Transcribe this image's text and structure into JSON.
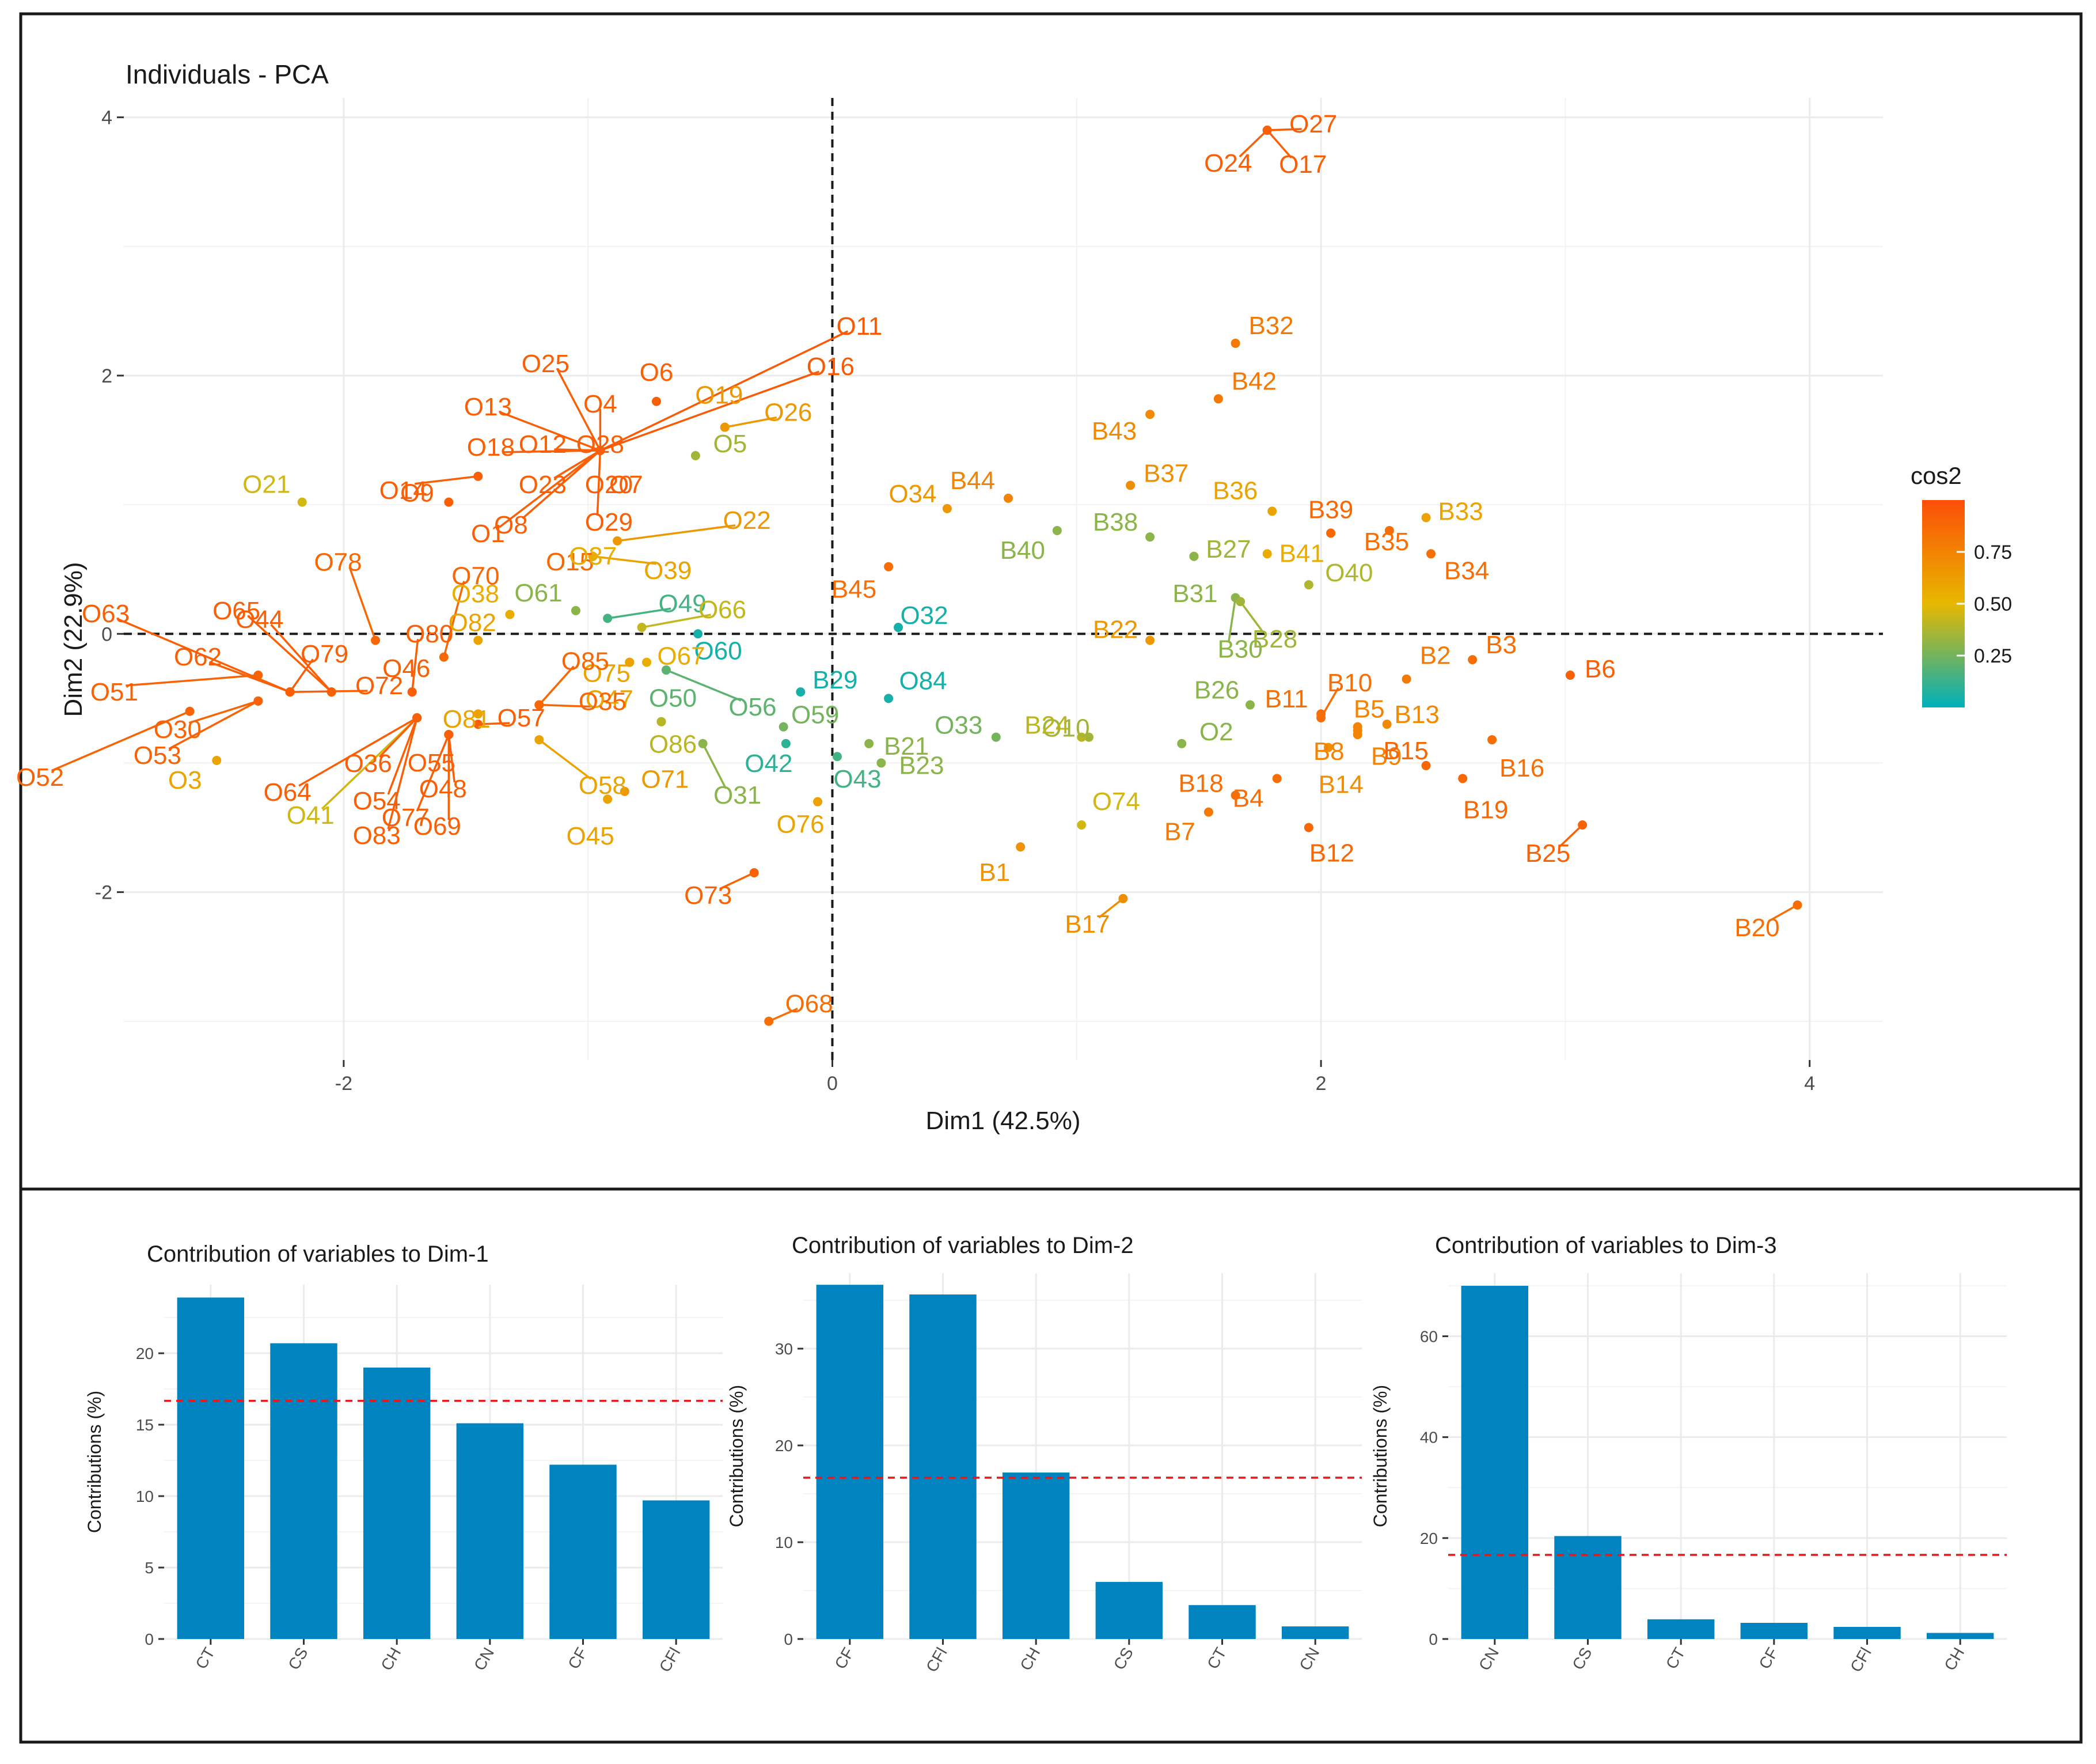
{
  "chart_data": [
    {
      "type": "scatter",
      "title": "Individuals - PCA",
      "xlabel": "Dim1 (42.5%)",
      "ylabel": "Dim2 (22.9%)",
      "xlim": [
        -2.9,
        4.3
      ],
      "ylim": [
        -3.3,
        4.15
      ],
      "x_ticks": [
        -2,
        0,
        2,
        4
      ],
      "y_ticks": [
        -2,
        0,
        2,
        4
      ],
      "grid": true,
      "reference_lines": {
        "x": 0,
        "y": 0,
        "style": "dashed"
      },
      "legend": {
        "title": "cos2",
        "position": "right",
        "ticks": [
          "0.25",
          "0.50",
          "0.75"
        ],
        "range": [
          0.0,
          1.0
        ]
      },
      "color_scale": [
        "#00AFBB",
        "#E7B800",
        "#FC4E07"
      ],
      "points": [
        {
          "label": "O27",
          "x": 1.78,
          "y": 3.9,
          "cos2": 0.92
        },
        {
          "label": "O24",
          "x": 1.78,
          "y": 3.9,
          "cos2": 0.92
        },
        {
          "label": "O17",
          "x": 1.78,
          "y": 3.9,
          "cos2": 0.92
        },
        {
          "label": "B32",
          "x": 1.65,
          "y": 2.25,
          "cos2": 0.8
        },
        {
          "label": "B42",
          "x": 1.58,
          "y": 1.82,
          "cos2": 0.8
        },
        {
          "label": "B43",
          "x": 1.3,
          "y": 1.7,
          "cos2": 0.72
        },
        {
          "label": "B37",
          "x": 1.22,
          "y": 1.15,
          "cos2": 0.7
        },
        {
          "label": "B44",
          "x": 0.72,
          "y": 1.05,
          "cos2": 0.75
        },
        {
          "label": "B36",
          "x": 1.8,
          "y": 0.95,
          "cos2": 0.6
        },
        {
          "label": "B39",
          "x": 2.04,
          "y": 0.78,
          "cos2": 0.88
        },
        {
          "label": "B35",
          "x": 2.28,
          "y": 0.8,
          "cos2": 0.85
        },
        {
          "label": "B33",
          "x": 2.43,
          "y": 0.9,
          "cos2": 0.6
        },
        {
          "label": "B34",
          "x": 2.45,
          "y": 0.62,
          "cos2": 0.85
        },
        {
          "label": "B38",
          "x": 1.3,
          "y": 0.75,
          "cos2": 0.3
        },
        {
          "label": "B40",
          "x": 0.92,
          "y": 0.8,
          "cos2": 0.3
        },
        {
          "label": "B27",
          "x": 1.48,
          "y": 0.6,
          "cos2": 0.35
        },
        {
          "label": "B41",
          "x": 1.78,
          "y": 0.62,
          "cos2": 0.55
        },
        {
          "label": "B31",
          "x": 1.48,
          "y": 0.6,
          "cos2": 0.3
        },
        {
          "label": "B30",
          "x": 1.65,
          "y": 0.28,
          "cos2": 0.3
        },
        {
          "label": "B28",
          "x": 1.67,
          "y": 0.25,
          "cos2": 0.35
        },
        {
          "label": "O40",
          "x": 1.95,
          "y": 0.38,
          "cos2": 0.38
        },
        {
          "label": "O34",
          "x": 0.47,
          "y": 0.97,
          "cos2": 0.65
        },
        {
          "label": "B45",
          "x": 0.23,
          "y": 0.52,
          "cos2": 0.85
        },
        {
          "label": "O32",
          "x": 0.27,
          "y": 0.05,
          "cos2": 0.05
        },
        {
          "label": "O84",
          "x": 0.23,
          "y": -0.5,
          "cos2": 0.05
        },
        {
          "label": "B29",
          "x": -0.13,
          "y": -0.45,
          "cos2": 0.05
        },
        {
          "label": "B22",
          "x": 1.3,
          "y": -0.05,
          "cos2": 0.65
        },
        {
          "label": "B26",
          "x": 1.71,
          "y": -0.55,
          "cos2": 0.3
        },
        {
          "label": "B11",
          "x": 2.0,
          "y": -0.62,
          "cos2": 0.85
        },
        {
          "label": "B10",
          "x": 2.0,
          "y": -0.65,
          "cos2": 0.85
        },
        {
          "label": "B2",
          "x": 2.35,
          "y": -0.35,
          "cos2": 0.8
        },
        {
          "label": "B3",
          "x": 2.62,
          "y": -0.2,
          "cos2": 0.85
        },
        {
          "label": "B6",
          "x": 3.02,
          "y": -0.32,
          "cos2": 0.92
        },
        {
          "label": "B13",
          "x": 2.27,
          "y": -0.7,
          "cos2": 0.72
        },
        {
          "label": "B5",
          "x": 2.15,
          "y": -0.72,
          "cos2": 0.75
        },
        {
          "label": "B8",
          "x": 2.15,
          "y": -0.78,
          "cos2": 0.75
        },
        {
          "label": "B9",
          "x": 2.15,
          "y": -0.75,
          "cos2": 0.75
        },
        {
          "label": "B16",
          "x": 2.7,
          "y": -0.82,
          "cos2": 0.85
        },
        {
          "label": "B15",
          "x": 2.43,
          "y": -1.02,
          "cos2": 0.88
        },
        {
          "label": "B19",
          "x": 2.58,
          "y": -1.12,
          "cos2": 0.88
        },
        {
          "label": "B25",
          "x": 3.07,
          "y": -1.48,
          "cos2": 0.9
        },
        {
          "label": "B14",
          "x": 2.03,
          "y": -0.88,
          "cos2": 0.7
        },
        {
          "label": "B4",
          "x": 1.82,
          "y": -1.12,
          "cos2": 0.85
        },
        {
          "label": "B18",
          "x": 1.65,
          "y": -1.25,
          "cos2": 0.85
        },
        {
          "label": "B7",
          "x": 1.54,
          "y": -1.38,
          "cos2": 0.8
        },
        {
          "label": "B12",
          "x": 1.95,
          "y": -1.5,
          "cos2": 0.88
        },
        {
          "label": "O2",
          "x": 1.43,
          "y": -0.85,
          "cos2": 0.3
        },
        {
          "label": "O10",
          "x": 1.05,
          "y": -0.8,
          "cos2": 0.35
        },
        {
          "label": "B24",
          "x": 1.02,
          "y": -0.8,
          "cos2": 0.4
        },
        {
          "label": "O33",
          "x": 0.67,
          "y": -0.8,
          "cos2": 0.25
        },
        {
          "label": "O74",
          "x": 1.02,
          "y": -1.48,
          "cos2": 0.45
        },
        {
          "label": "B1",
          "x": 0.77,
          "y": -1.65,
          "cos2": 0.68
        },
        {
          "label": "B17",
          "x": 1.19,
          "y": -2.05,
          "cos2": 0.7
        },
        {
          "label": "B20",
          "x": 3.95,
          "y": -2.1,
          "cos2": 0.85
        },
        {
          "label": "O11",
          "x": -0.95,
          "y": 1.42,
          "cos2": 0.95
        },
        {
          "label": "O16",
          "x": -0.95,
          "y": 1.42,
          "cos2": 0.95
        },
        {
          "label": "O6",
          "x": -0.72,
          "y": 1.8,
          "cos2": 0.92
        },
        {
          "label": "O19",
          "x": -0.44,
          "y": 1.6,
          "cos2": 0.65
        },
        {
          "label": "O26",
          "x": -0.44,
          "y": 1.6,
          "cos2": 0.65
        },
        {
          "label": "O5",
          "x": -0.56,
          "y": 1.38,
          "cos2": 0.35
        },
        {
          "label": "O25",
          "x": -0.95,
          "y": 1.42,
          "cos2": 0.92
        },
        {
          "label": "O4",
          "x": -0.95,
          "y": 1.42,
          "cos2": 0.92
        },
        {
          "label": "O13",
          "x": -0.95,
          "y": 1.42,
          "cos2": 0.92
        },
        {
          "label": "O28",
          "x": -0.95,
          "y": 1.42,
          "cos2": 0.92
        },
        {
          "label": "O12",
          "x": -0.95,
          "y": 1.42,
          "cos2": 0.92
        },
        {
          "label": "O18",
          "x": -0.95,
          "y": 1.42,
          "cos2": 0.92
        },
        {
          "label": "O14",
          "x": -1.45,
          "y": 1.22,
          "cos2": 0.92
        },
        {
          "label": "O23",
          "x": -0.95,
          "y": 1.42,
          "cos2": 0.92
        },
        {
          "label": "O20",
          "x": -0.95,
          "y": 1.42,
          "cos2": 0.92
        },
        {
          "label": "O7",
          "x": -0.95,
          "y": 1.42,
          "cos2": 0.92
        },
        {
          "label": "O9",
          "x": -1.57,
          "y": 1.02,
          "cos2": 0.92
        },
        {
          "label": "O1",
          "x": -0.95,
          "y": 1.42,
          "cos2": 0.92
        },
        {
          "label": "O8",
          "x": -0.95,
          "y": 1.42,
          "cos2": 0.92
        },
        {
          "label": "O29",
          "x": -0.95,
          "y": 1.42,
          "cos2": 0.92
        },
        {
          "label": "O21",
          "x": -2.17,
          "y": 1.02,
          "cos2": 0.45
        },
        {
          "label": "O22",
          "x": -0.88,
          "y": 0.72,
          "cos2": 0.65
        },
        {
          "label": "O15",
          "x": -0.98,
          "y": 0.6,
          "cos2": 0.88
        },
        {
          "label": "O39",
          "x": -0.98,
          "y": 0.6,
          "cos2": 0.6
        },
        {
          "label": "O37",
          "x": -0.98,
          "y": 0.6,
          "cos2": 0.55
        },
        {
          "label": "O38",
          "x": -1.32,
          "y": 0.15,
          "cos2": 0.55
        },
        {
          "label": "O61",
          "x": -1.05,
          "y": 0.18,
          "cos2": 0.3
        },
        {
          "label": "O49",
          "x": -0.92,
          "y": 0.12,
          "cos2": 0.15
        },
        {
          "label": "O66",
          "x": -0.78,
          "y": 0.05,
          "cos2": 0.42
        },
        {
          "label": "O60",
          "x": -0.55,
          "y": 0.0,
          "cos2": 0.05
        },
        {
          "label": "O82",
          "x": -1.45,
          "y": -0.05,
          "cos2": 0.6
        },
        {
          "label": "O75",
          "x": -0.83,
          "y": -0.22,
          "cos2": 0.6
        },
        {
          "label": "O67",
          "x": -0.76,
          "y": -0.22,
          "cos2": 0.55
        },
        {
          "label": "O47",
          "x": -0.83,
          "y": -0.22,
          "cos2": 0.6
        },
        {
          "label": "O56",
          "x": -0.68,
          "y": -0.28,
          "cos2": 0.2
        },
        {
          "label": "O50",
          "x": -0.7,
          "y": -0.68,
          "cos2": 0.2
        },
        {
          "label": "O86",
          "x": -0.7,
          "y": -0.68,
          "cos2": 0.4
        },
        {
          "label": "O59",
          "x": -0.2,
          "y": -0.72,
          "cos2": 0.25
        },
        {
          "label": "O42",
          "x": -0.19,
          "y": -0.85,
          "cos2": 0.1
        },
        {
          "label": "O43",
          "x": 0.02,
          "y": -0.95,
          "cos2": 0.15
        },
        {
          "label": "B21",
          "x": 0.15,
          "y": -0.85,
          "cos2": 0.3
        },
        {
          "label": "B23",
          "x": 0.2,
          "y": -1.0,
          "cos2": 0.3
        },
        {
          "label": "O31",
          "x": -0.53,
          "y": -0.85,
          "cos2": 0.3
        },
        {
          "label": "O76",
          "x": -0.06,
          "y": -1.3,
          "cos2": 0.6
        },
        {
          "label": "O71",
          "x": -0.85,
          "y": -1.22,
          "cos2": 0.65
        },
        {
          "label": "O45",
          "x": -0.92,
          "y": -1.28,
          "cos2": 0.6
        },
        {
          "label": "O73",
          "x": -0.32,
          "y": -1.85,
          "cos2": 0.9
        },
        {
          "label": "O68",
          "x": -0.26,
          "y": -3.0,
          "cos2": 0.85
        },
        {
          "label": "O78",
          "x": -1.87,
          "y": -0.05,
          "cos2": 0.88
        },
        {
          "label": "O70",
          "x": -1.59,
          "y": -0.18,
          "cos2": 0.88
        },
        {
          "label": "O80",
          "x": -1.72,
          "y": -0.45,
          "cos2": 0.92
        },
        {
          "label": "O46",
          "x": -1.72,
          "y": -0.45,
          "cos2": 0.92
        },
        {
          "label": "O44",
          "x": -2.05,
          "y": -0.45,
          "cos2": 0.92
        },
        {
          "label": "O65",
          "x": -2.05,
          "y": -0.45,
          "cos2": 0.92
        },
        {
          "label": "O63",
          "x": -2.22,
          "y": -0.45,
          "cos2": 0.92
        },
        {
          "label": "O62",
          "x": -2.22,
          "y": -0.45,
          "cos2": 0.92
        },
        {
          "label": "O79",
          "x": -2.22,
          "y": -0.45,
          "cos2": 0.92
        },
        {
          "label": "O72",
          "x": -2.22,
          "y": -0.45,
          "cos2": 0.92
        },
        {
          "label": "O51",
          "x": -2.35,
          "y": -0.32,
          "cos2": 0.9
        },
        {
          "label": "O30",
          "x": -2.35,
          "y": -0.52,
          "cos2": 0.9
        },
        {
          "label": "O52",
          "x": -2.63,
          "y": -0.6,
          "cos2": 0.9
        },
        {
          "label": "O53",
          "x": -2.35,
          "y": -0.52,
          "cos2": 0.9
        },
        {
          "label": "O3",
          "x": -2.52,
          "y": -0.98,
          "cos2": 0.6
        },
        {
          "label": "O64",
          "x": -1.7,
          "y": -0.65,
          "cos2": 0.92
        },
        {
          "label": "O41",
          "x": -1.7,
          "y": -0.65,
          "cos2": 0.45
        },
        {
          "label": "O36",
          "x": -1.7,
          "y": -0.65,
          "cos2": 0.92
        },
        {
          "label": "O54",
          "x": -1.7,
          "y": -0.65,
          "cos2": 0.92
        },
        {
          "label": "O83",
          "x": -1.7,
          "y": -0.65,
          "cos2": 0.92
        },
        {
          "label": "O81",
          "x": -1.45,
          "y": -0.62,
          "cos2": 0.6
        },
        {
          "label": "O57",
          "x": -1.45,
          "y": -0.7,
          "cos2": 0.92
        },
        {
          "label": "O85",
          "x": -1.2,
          "y": -0.55,
          "cos2": 0.88
        },
        {
          "label": "O35",
          "x": -1.2,
          "y": -0.55,
          "cos2": 0.88
        },
        {
          "label": "O55",
          "x": -1.57,
          "y": -0.78,
          "cos2": 0.92
        },
        {
          "label": "O48",
          "x": -1.57,
          "y": -0.78,
          "cos2": 0.92
        },
        {
          "label": "O58",
          "x": -1.2,
          "y": -0.82,
          "cos2": 0.6
        },
        {
          "label": "O77",
          "x": -1.57,
          "y": -0.78,
          "cos2": 0.92
        },
        {
          "label": "O69",
          "x": -1.57,
          "y": -0.78,
          "cos2": 0.92
        }
      ]
    },
    {
      "type": "bar",
      "title": "Contribution of variables to Dim-1",
      "xlabel": "",
      "ylabel": "Contributions (%)",
      "ylim": [
        0,
        24.8
      ],
      "y_ticks": [
        0,
        5,
        10,
        15,
        20
      ],
      "categories": [
        "CT",
        "CS",
        "CH",
        "CN",
        "CF",
        "CFl"
      ],
      "values": [
        23.9,
        20.7,
        19.0,
        15.1,
        12.2,
        9.7
      ],
      "reference_line": 16.67,
      "bar_color": "#0083BE",
      "grid": true
    },
    {
      "type": "bar",
      "title": "Contribution of variables to Dim-2",
      "xlabel": "",
      "ylabel": "Contributions (%)",
      "ylim": [
        0,
        37.8
      ],
      "y_ticks": [
        0,
        10,
        20,
        30
      ],
      "categories": [
        "CF",
        "CFl",
        "CH",
        "CS",
        "CT",
        "CN"
      ],
      "values": [
        36.6,
        35.6,
        17.2,
        5.9,
        3.5,
        1.3
      ],
      "reference_line": 16.67,
      "bar_color": "#0083BE",
      "grid": true
    },
    {
      "type": "bar",
      "title": "Contribution of variables to Dim-3",
      "xlabel": "",
      "ylabel": "Contributions (%)",
      "ylim": [
        0,
        72.5
      ],
      "y_ticks": [
        0,
        20,
        40,
        60
      ],
      "categories": [
        "CN",
        "CS",
        "CT",
        "CF",
        "CFl",
        "CH"
      ],
      "values": [
        70.0,
        20.4,
        3.9,
        3.2,
        2.4,
        1.2
      ],
      "reference_line": 16.67,
      "bar_color": "#0083BE",
      "grid": true
    }
  ]
}
